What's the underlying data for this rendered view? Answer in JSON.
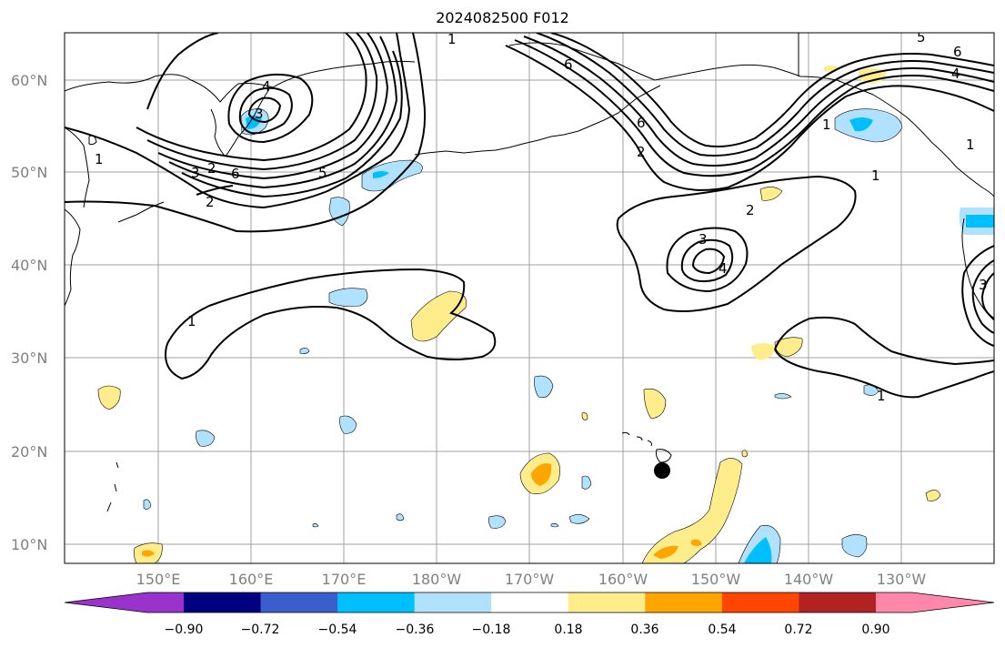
{
  "title": "2024082500 F012",
  "latitude_labels": [
    "60°N",
    "50°N",
    "40°N",
    "30°N",
    "20°N",
    "10°N"
  ],
  "longitude_labels": [
    "150°E",
    "160°E",
    "170°E",
    "180°W",
    "170°W",
    "160°W",
    "150°W",
    "140°W",
    "130°W"
  ],
  "colorbar": {
    "tick_labels": [
      "−0.90",
      "−0.72",
      "−0.54",
      "−0.36",
      "−0.18",
      "0.18",
      "0.36",
      "0.54",
      "0.72",
      "0.90"
    ],
    "colors": [
      "#9933cc",
      "#000080",
      "#3a5fcd",
      "#00bfff",
      "#b0e2ff",
      "#ffffff",
      "#ffec8b",
      "#ffa500",
      "#ff4500",
      "#b22222",
      "#ff88aa"
    ],
    "extend": "both"
  },
  "contour_labels": [
    "1",
    "2",
    "3",
    "4",
    "5",
    "6"
  ],
  "marker": {
    "label": "point-marker",
    "color": "#000000"
  }
}
